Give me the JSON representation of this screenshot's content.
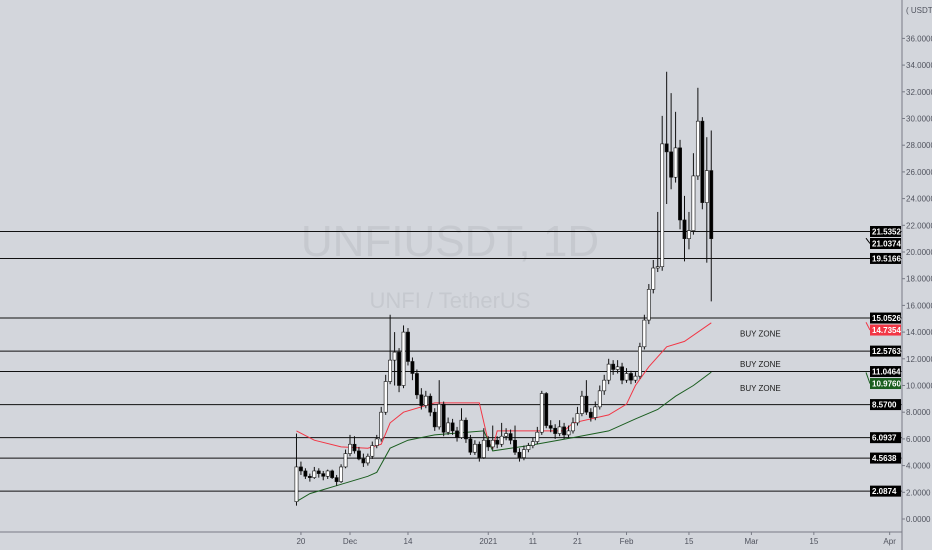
{
  "chart_data": {
    "type": "candlestick",
    "symbol_watermark": "UNFIUSDT, 1D",
    "description_watermark": "UNFI / TetherUS",
    "currency_label": "( USDT )",
    "ylim": [
      -1.5,
      38.9
    ],
    "y_ticks": [
      "0.0000",
      "2.0000",
      "4.0000",
      "6.0000",
      "8.0000",
      "10.0000",
      "12.0000",
      "14.0000",
      "16.0000",
      "18.0000",
      "20.0000",
      "22.0000",
      "24.0000",
      "26.0000",
      "28.0000",
      "30.0000",
      "32.0000",
      "34.0000",
      "36.0000"
    ],
    "x_ticks": [
      {
        "date": "2020-11-20",
        "label": "20"
      },
      {
        "date": "2020-12-01",
        "label": "Dec"
      },
      {
        "date": "2020-12-14",
        "label": "14"
      },
      {
        "date": "2021-01-01",
        "label": "2021"
      },
      {
        "date": "2021-01-11",
        "label": "11"
      },
      {
        "date": "2021-01-21",
        "label": "21"
      },
      {
        "date": "2021-02-01",
        "label": "Feb"
      },
      {
        "date": "2021-02-15",
        "label": "15"
      },
      {
        "date": "2021-03-01",
        "label": "Mar"
      },
      {
        "date": "2021-03-15",
        "label": "15"
      },
      {
        "date": "2021-04-01",
        "label": "Apr"
      }
    ],
    "x_range": [
      "2020-10-23",
      "2021-04-10"
    ],
    "candles_columns": [
      "date",
      "open",
      "high",
      "low",
      "close"
    ],
    "candles": [
      [
        "2020-11-19",
        1.3,
        6.4,
        1.0,
        3.9
      ],
      [
        "2020-11-20",
        3.9,
        4.3,
        3.3,
        3.6
      ],
      [
        "2020-11-21",
        3.6,
        3.8,
        3.0,
        3.2
      ],
      [
        "2020-11-22",
        3.2,
        3.4,
        2.8,
        3.1
      ],
      [
        "2020-11-23",
        3.1,
        3.9,
        3.0,
        3.6
      ],
      [
        "2020-11-24",
        3.6,
        3.8,
        3.1,
        3.4
      ],
      [
        "2020-11-25",
        3.4,
        3.6,
        2.9,
        3.2
      ],
      [
        "2020-11-26",
        3.2,
        3.7,
        3.0,
        3.6
      ],
      [
        "2020-11-27",
        3.6,
        3.7,
        3.0,
        3.1
      ],
      [
        "2020-11-28",
        3.1,
        3.3,
        2.5,
        2.8
      ],
      [
        "2020-11-29",
        2.8,
        4.1,
        2.7,
        3.9
      ],
      [
        "2020-11-30",
        3.9,
        5.2,
        3.8,
        4.9
      ],
      [
        "2020-12-01",
        4.9,
        6.3,
        4.7,
        5.6
      ],
      [
        "2020-12-02",
        5.6,
        6.2,
        4.9,
        5.1
      ],
      [
        "2020-12-03",
        5.1,
        5.4,
        4.4,
        4.5
      ],
      [
        "2020-12-04",
        4.5,
        4.9,
        3.9,
        4.2
      ],
      [
        "2020-12-05",
        4.2,
        4.9,
        4.0,
        4.7
      ],
      [
        "2020-12-06",
        4.7,
        5.8,
        4.5,
        5.5
      ],
      [
        "2020-12-07",
        5.5,
        6.3,
        5.3,
        6.0
      ],
      [
        "2020-12-08",
        6.0,
        8.4,
        5.8,
        8.0
      ],
      [
        "2020-12-09",
        8.0,
        10.8,
        7.8,
        10.3
      ],
      [
        "2020-12-10",
        10.3,
        15.3,
        10.1,
        11.9
      ],
      [
        "2020-12-11",
        11.9,
        14.0,
        10.0,
        12.5
      ],
      [
        "2020-12-12",
        12.5,
        12.8,
        9.5,
        10.0
      ],
      [
        "2020-12-13",
        10.0,
        14.5,
        9.8,
        14.0
      ],
      [
        "2020-12-14",
        14.0,
        14.3,
        11.5,
        11.8
      ],
      [
        "2020-12-15",
        11.8,
        12.1,
        10.4,
        10.9
      ],
      [
        "2020-12-16",
        10.9,
        11.2,
        9.0,
        9.3
      ],
      [
        "2020-12-17",
        9.3,
        9.8,
        8.2,
        8.5
      ],
      [
        "2020-12-18",
        8.5,
        9.6,
        8.3,
        9.2
      ],
      [
        "2020-12-19",
        9.2,
        9.4,
        7.7,
        8.0
      ],
      [
        "2020-12-20",
        8.0,
        8.3,
        6.6,
        6.9
      ],
      [
        "2020-12-21",
        6.9,
        10.4,
        6.7,
        8.6
      ],
      [
        "2020-12-22",
        8.6,
        8.8,
        6.2,
        6.5
      ],
      [
        "2020-12-23",
        6.5,
        7.6,
        6.3,
        7.2
      ],
      [
        "2020-12-24",
        7.2,
        7.5,
        6.3,
        6.6
      ],
      [
        "2020-12-25",
        6.6,
        6.9,
        5.8,
        6.1
      ],
      [
        "2020-12-26",
        6.1,
        8.3,
        6.0,
        7.4
      ],
      [
        "2020-12-27",
        7.4,
        7.6,
        5.7,
        6.0
      ],
      [
        "2020-12-28",
        6.0,
        6.3,
        4.8,
        5.0
      ],
      [
        "2020-12-29",
        5.0,
        5.9,
        4.8,
        5.6
      ],
      [
        "2020-12-30",
        5.6,
        5.8,
        4.3,
        4.6
      ],
      [
        "2020-12-31",
        4.6,
        6.8,
        4.5,
        5.9
      ],
      [
        "2021-01-01",
        5.9,
        6.2,
        5.1,
        5.4
      ],
      [
        "2021-01-02",
        5.4,
        7.0,
        5.2,
        5.9
      ],
      [
        "2021-01-03",
        5.9,
        6.2,
        5.3,
        5.6
      ],
      [
        "2021-01-04",
        5.6,
        7.2,
        5.4,
        6.2
      ],
      [
        "2021-01-05",
        6.2,
        6.8,
        5.9,
        6.4
      ],
      [
        "2021-01-06",
        6.4,
        6.7,
        5.6,
        5.9
      ],
      [
        "2021-01-07",
        5.9,
        7.0,
        4.8,
        5.0
      ],
      [
        "2021-01-08",
        5.0,
        5.3,
        4.3,
        4.6
      ],
      [
        "2021-01-09",
        4.6,
        5.5,
        4.4,
        5.2
      ],
      [
        "2021-01-10",
        5.2,
        5.7,
        5.0,
        5.5
      ],
      [
        "2021-01-11",
        5.5,
        6.1,
        5.3,
        5.8
      ],
      [
        "2021-01-12",
        5.8,
        6.9,
        5.6,
        6.5
      ],
      [
        "2021-01-13",
        6.5,
        9.6,
        6.3,
        9.4
      ],
      [
        "2021-01-14",
        9.4,
        9.5,
        6.8,
        7.0
      ],
      [
        "2021-01-15",
        7.0,
        7.4,
        6.5,
        6.8
      ],
      [
        "2021-01-16",
        6.8,
        7.1,
        6.0,
        6.4
      ],
      [
        "2021-01-17",
        6.4,
        7.4,
        6.2,
        6.9
      ],
      [
        "2021-01-18",
        6.9,
        7.2,
        6.0,
        6.3
      ],
      [
        "2021-01-19",
        6.3,
        7.0,
        6.1,
        6.6
      ],
      [
        "2021-01-20",
        6.6,
        7.6,
        6.4,
        7.2
      ],
      [
        "2021-01-21",
        7.2,
        8.4,
        7.0,
        7.9
      ],
      [
        "2021-01-22",
        7.9,
        9.6,
        7.7,
        9.2
      ],
      [
        "2021-01-23",
        9.2,
        10.4,
        7.8,
        8.0
      ],
      [
        "2021-01-24",
        8.0,
        8.3,
        7.3,
        7.6
      ],
      [
        "2021-01-25",
        7.6,
        8.8,
        7.4,
        8.4
      ],
      [
        "2021-01-26",
        8.4,
        10.0,
        8.2,
        9.6
      ],
      [
        "2021-01-27",
        9.6,
        10.8,
        9.3,
        10.4
      ],
      [
        "2021-01-28",
        10.4,
        12.0,
        10.1,
        11.6
      ],
      [
        "2021-01-29",
        11.6,
        11.9,
        10.8,
        11.2
      ],
      [
        "2021-01-30",
        11.2,
        11.9,
        10.9,
        11.4
      ],
      [
        "2021-01-31",
        11.4,
        11.7,
        10.1,
        10.4
      ],
      [
        "2021-02-01",
        10.4,
        11.3,
        10.2,
        10.9
      ],
      [
        "2021-02-02",
        10.9,
        11.1,
        10.1,
        10.4
      ],
      [
        "2021-02-03",
        10.4,
        11.0,
        10.2,
        10.7
      ],
      [
        "2021-02-04",
        10.7,
        13.2,
        10.5,
        12.9
      ],
      [
        "2021-02-05",
        12.9,
        15.3,
        12.7,
        14.9
      ],
      [
        "2021-02-06",
        14.9,
        17.6,
        14.6,
        17.2
      ],
      [
        "2021-02-07",
        17.2,
        19.4,
        16.9,
        18.8
      ],
      [
        "2021-02-08",
        18.8,
        23.0,
        18.5,
        18.9
      ],
      [
        "2021-02-09",
        18.9,
        30.2,
        18.6,
        28.1
      ],
      [
        "2021-02-10",
        28.1,
        33.5,
        23.6,
        27.5
      ],
      [
        "2021-02-11",
        27.5,
        31.9,
        24.7,
        25.6
      ],
      [
        "2021-02-12",
        25.6,
        30.5,
        25.2,
        27.8
      ],
      [
        "2021-02-13",
        27.8,
        28.4,
        21.7,
        22.4
      ],
      [
        "2021-02-14",
        22.4,
        24.2,
        19.3,
        21.0
      ],
      [
        "2021-02-15",
        21.0,
        23.0,
        20.2,
        21.6
      ],
      [
        "2021-02-16",
        21.6,
        27.4,
        21.3,
        25.7
      ],
      [
        "2021-02-17",
        25.7,
        32.3,
        25.4,
        29.8
      ],
      [
        "2021-02-18",
        29.8,
        30.1,
        23.2,
        23.7
      ],
      [
        "2021-02-19",
        23.7,
        28.6,
        19.2,
        26.1
      ],
      [
        "2021-02-20",
        26.1,
        29.1,
        16.3,
        21.0
      ]
    ],
    "upper_line": {
      "color": "#f23645",
      "points": [
        [
          "2020-11-19",
          6.6
        ],
        [
          "2020-11-23",
          5.9
        ],
        [
          "2020-11-29",
          5.4
        ],
        [
          "2020-12-05",
          5.3
        ],
        [
          "2020-12-08",
          5.6
        ],
        [
          "2020-12-10",
          7.2
        ],
        [
          "2020-12-13",
          8.0
        ],
        [
          "2020-12-20",
          8.7
        ],
        [
          "2020-12-30",
          8.7
        ],
        [
          "2021-01-01",
          5.8
        ],
        [
          "2021-01-02",
          5.3
        ],
        [
          "2021-01-03",
          6.6
        ],
        [
          "2021-01-18",
          6.6
        ],
        [
          "2021-01-20",
          7.2
        ],
        [
          "2021-01-28",
          7.8
        ],
        [
          "2021-02-01",
          8.6
        ],
        [
          "2021-02-03",
          10.0
        ],
        [
          "2021-02-06",
          11.4
        ],
        [
          "2021-02-10",
          12.9
        ],
        [
          "2021-02-14",
          13.3
        ],
        [
          "2021-02-20",
          14.7
        ]
      ]
    },
    "lower_line": {
      "color": "#1b5e20",
      "points": [
        [
          "2020-11-19",
          1.3
        ],
        [
          "2020-11-22",
          1.9
        ],
        [
          "2020-11-29",
          2.6
        ],
        [
          "2020-12-05",
          3.2
        ],
        [
          "2020-12-07",
          3.5
        ],
        [
          "2020-12-10",
          5.3
        ],
        [
          "2020-12-14",
          5.9
        ],
        [
          "2020-12-20",
          6.3
        ],
        [
          "2020-12-31",
          6.6
        ],
        [
          "2021-01-02",
          5.1
        ],
        [
          "2021-01-10",
          5.5
        ],
        [
          "2021-01-20",
          6.1
        ],
        [
          "2021-01-28",
          6.6
        ],
        [
          "2021-02-03",
          7.5
        ],
        [
          "2021-02-08",
          8.2
        ],
        [
          "2021-02-12",
          9.2
        ],
        [
          "2021-02-16",
          10.0
        ],
        [
          "2021-02-20",
          11.0
        ]
      ]
    },
    "horizontal_levels": [
      21.5352,
      19.5166,
      15.0526,
      12.5763,
      11.0464,
      8.57,
      6.0937,
      4.5638,
      2.0874
    ],
    "price_tags": [
      {
        "label": "21.5352",
        "value": 21.5352,
        "color": "#000000"
      },
      {
        "label": "21.0374",
        "value": 21.0374,
        "color": "#000000"
      },
      {
        "label": "19.5166",
        "value": 19.5166,
        "color": "#000000"
      },
      {
        "label": "15.0526",
        "value": 15.0526,
        "color": "#000000"
      },
      {
        "label": "14.7354",
        "value": 14.7354,
        "color": "#f23645"
      },
      {
        "label": "12.5763",
        "value": 12.5763,
        "color": "#000000"
      },
      {
        "label": "11.0464",
        "value": 11.0464,
        "color": "#000000"
      },
      {
        "label": "10.9760",
        "value": 10.976,
        "color": "#1b5e20"
      },
      {
        "label": "8.5700",
        "value": 8.57,
        "color": "#000000"
      },
      {
        "label": "6.0937",
        "value": 6.0937,
        "color": "#000000"
      },
      {
        "label": "4.5638",
        "value": 4.5638,
        "color": "#000000"
      },
      {
        "label": "2.0874",
        "value": 2.0874,
        "color": "#000000"
      }
    ],
    "annotations": [
      {
        "text": "BUY ZONE",
        "value": 13.9
      },
      {
        "text": "BUY ZONE",
        "value": 11.6
      },
      {
        "text": "BUY ZONE",
        "value": 9.8
      }
    ]
  }
}
